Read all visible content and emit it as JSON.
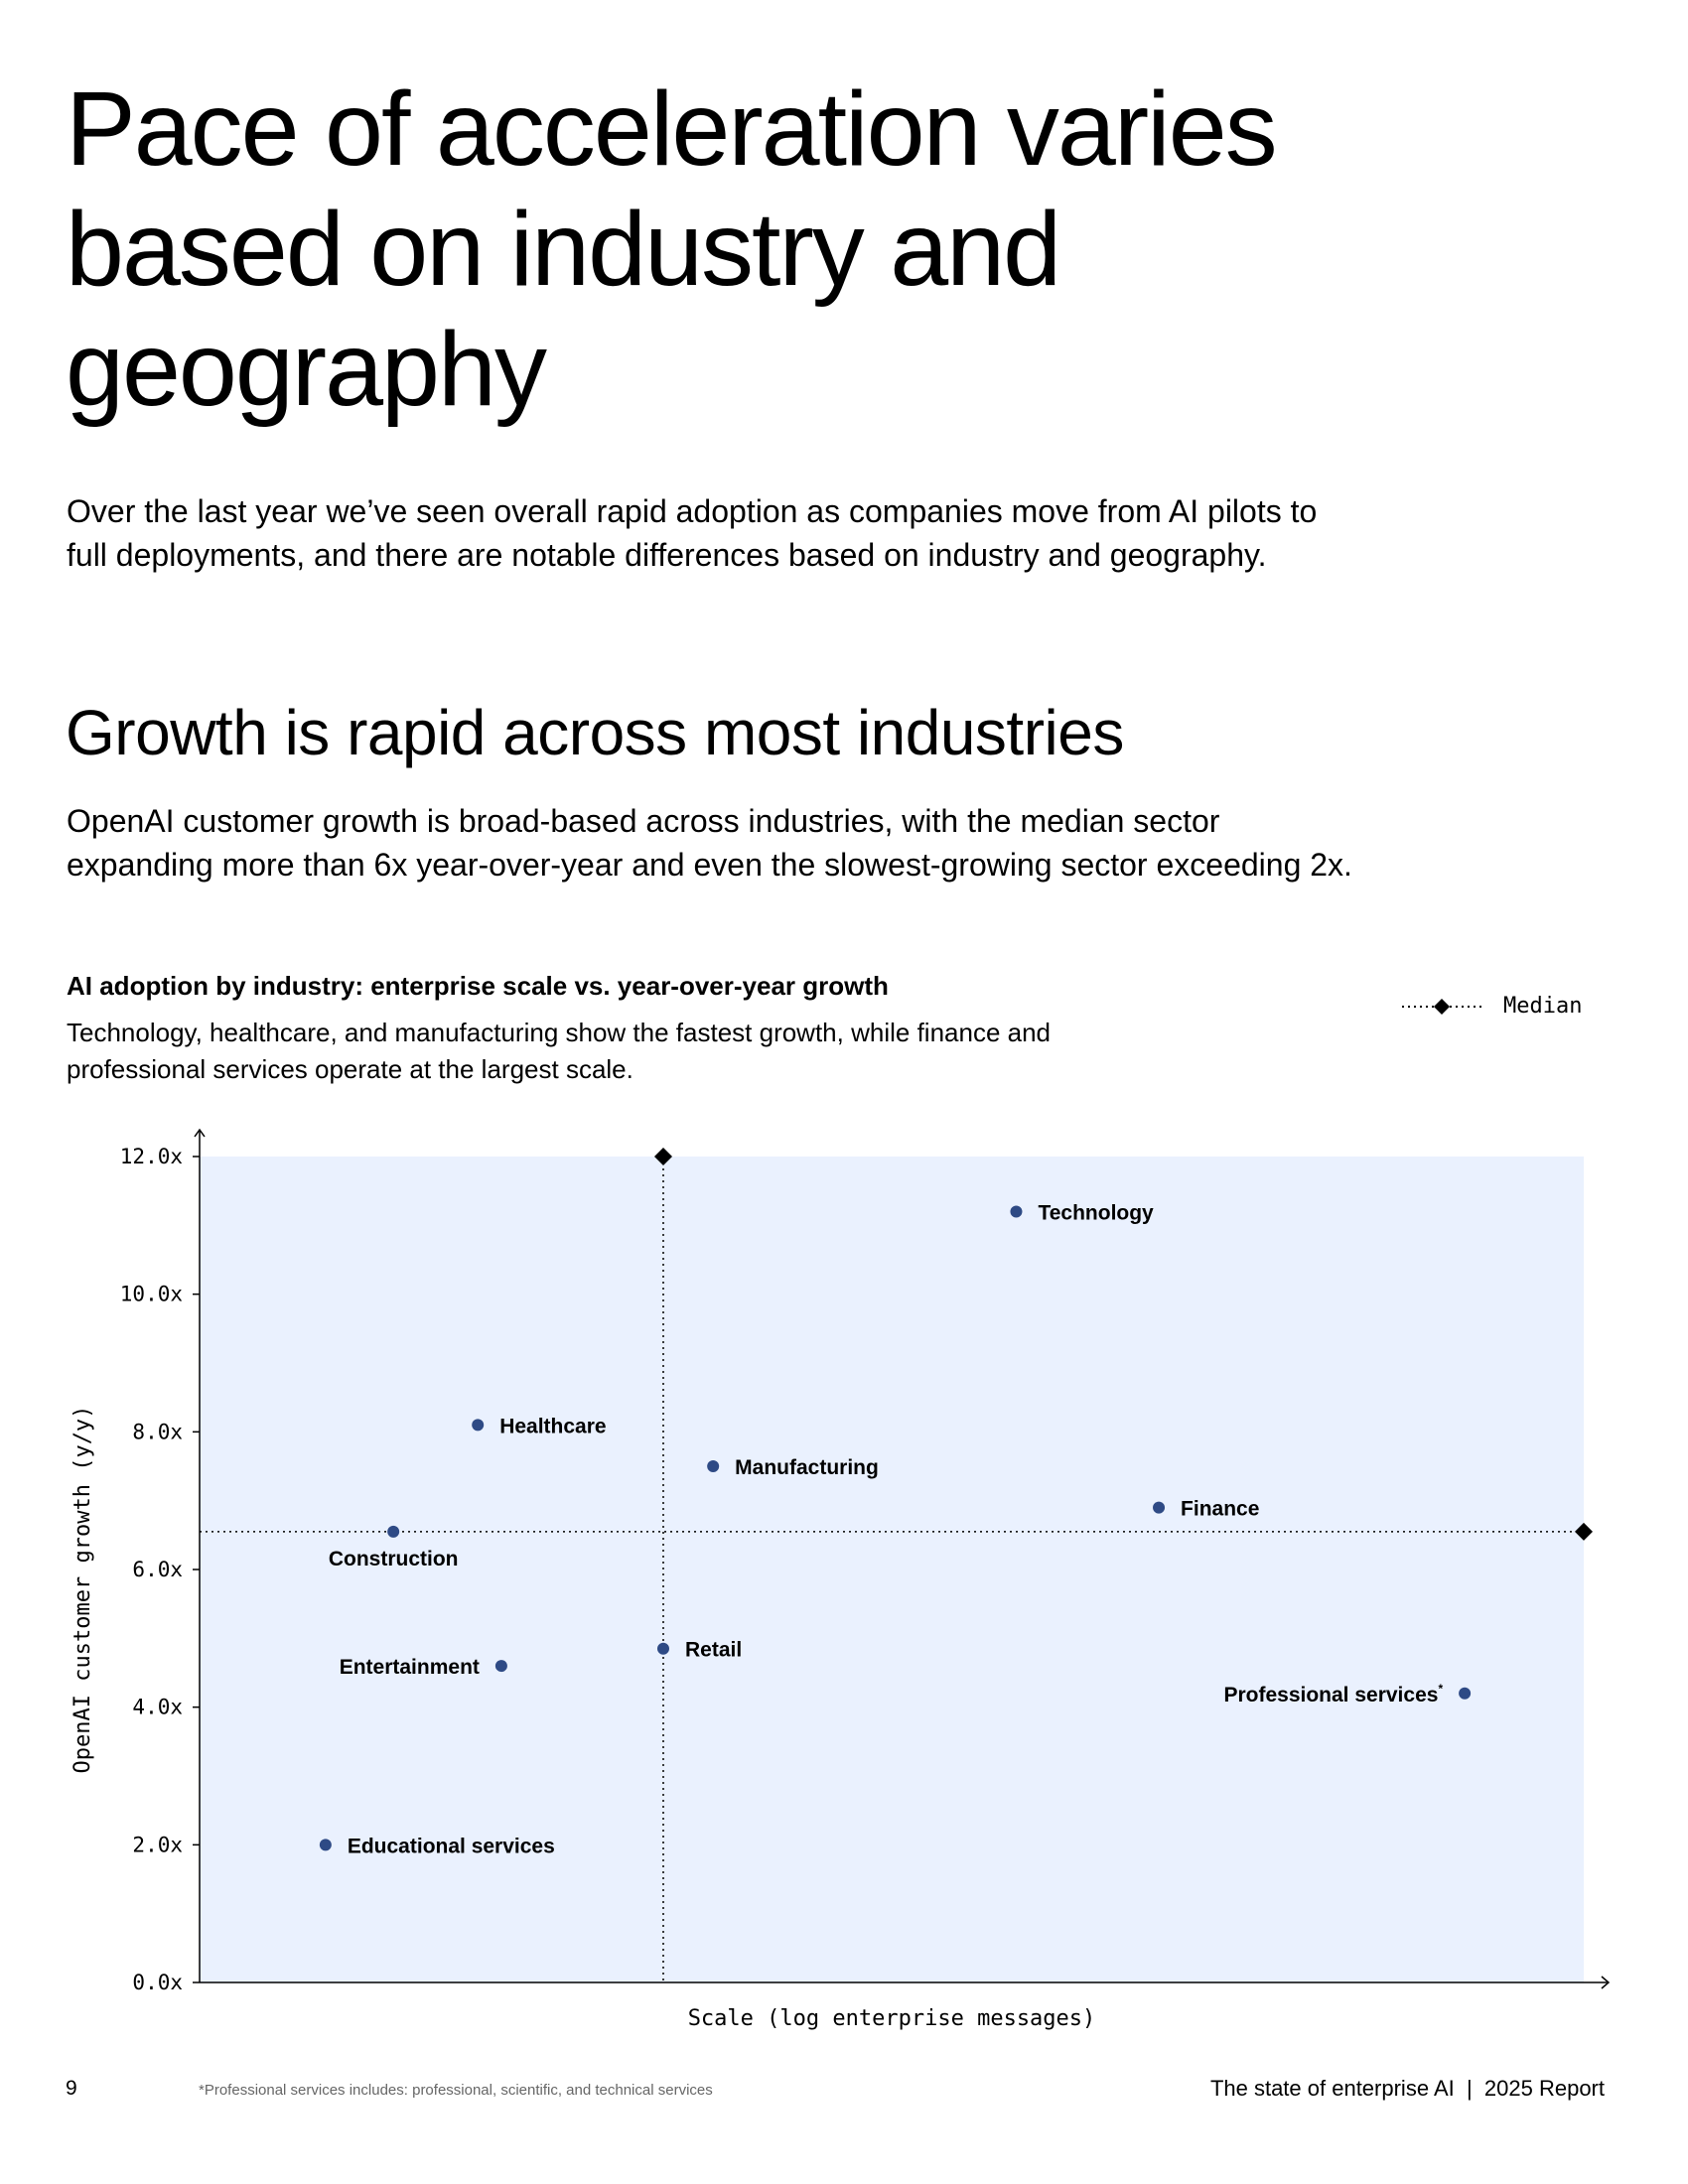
{
  "header": {
    "title": "Pace of acceleration varies based on industry and geography",
    "intro": "Over the last year we’ve seen overall rapid adoption as companies move from AI pilots to full deployments, and there are notable differences based on industry and geography.",
    "section_title": "Growth is rapid across most industries",
    "section_text": "OpenAI customer growth is broad-based across industries, with the median sector expanding more than 6x year-over-year and even the slowest-growing sector exceeding 2x."
  },
  "chart_data": {
    "type": "scatter",
    "title": "AI adoption by industry: enterprise scale vs. year-over-year growth",
    "subtitle": "Technology, healthcare, and manufacturing show the fastest growth, while finance and professional services operate at the largest scale.",
    "xlabel": "Scale (log enterprise messages)",
    "ylabel": "OpenAI customer growth (y/y)",
    "x_scale": "log",
    "x_tick_labels": "none",
    "xlim": [
      0,
      100
    ],
    "ylim": [
      0,
      12
    ],
    "y_ticks": [
      "0.0x",
      "2.0x",
      "4.0x",
      "6.0x",
      "8.0x",
      "10.0x",
      "12.0x"
    ],
    "y_tick_values": [
      0,
      2,
      4,
      6,
      8,
      10,
      12
    ],
    "grid": false,
    "legend": {
      "label": "Median",
      "placement": "top-right"
    },
    "median": {
      "x": 33.5,
      "y": 6.55
    },
    "points": [
      {
        "label": "Technology",
        "x": 59,
        "y": 11.2,
        "label_side": "right"
      },
      {
        "label": "Healthcare",
        "x": 20.1,
        "y": 8.1,
        "label_side": "right"
      },
      {
        "label": "Manufacturing",
        "x": 37.1,
        "y": 7.5,
        "label_side": "right"
      },
      {
        "label": "Finance",
        "x": 69.3,
        "y": 6.9,
        "label_side": "right"
      },
      {
        "label": "Construction",
        "x": 14.0,
        "y": 6.55,
        "label_side": "below"
      },
      {
        "label": "Retail",
        "x": 33.5,
        "y": 4.85,
        "label_side": "right"
      },
      {
        "label": "Entertainment",
        "x": 21.8,
        "y": 4.6,
        "label_side": "left"
      },
      {
        "label": "Professional services",
        "x": 91.4,
        "y": 4.2,
        "label_side": "left",
        "footnote_mark": "*"
      },
      {
        "label": "Educational services",
        "x": 9.1,
        "y": 2.0,
        "label_side": "right"
      }
    ],
    "colors": {
      "plot_bg": "#EAF1FE",
      "point": "#2E4A85",
      "median": "#000000"
    }
  },
  "footer": {
    "page_number": "9",
    "footnote": "*Professional services includes: professional, scientific, and technical services",
    "report": "The state of enterprise AI  |  2025 Report"
  }
}
